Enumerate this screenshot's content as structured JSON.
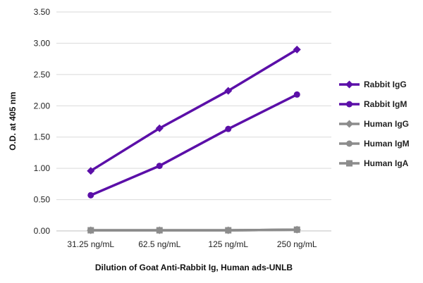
{
  "chart_data": {
    "type": "line",
    "categories": [
      "31.25 ng/mL",
      "62.5 ng/mL",
      "125 ng/mL",
      "250 ng/mL"
    ],
    "xlabel": "Dilution of Goat Anti-Rabbit Ig, Human ads-UNLB",
    "ylabel": "O.D. at 405 nm",
    "ylim": [
      0,
      3.5
    ],
    "yticks": [
      "0.00",
      "0.50",
      "1.00",
      "1.50",
      "2.00",
      "2.50",
      "3.00",
      "3.50"
    ],
    "grid": true,
    "legend_position": "right",
    "series": [
      {
        "name": "Rabbit IgG",
        "values": [
          0.96,
          1.64,
          2.24,
          2.9
        ],
        "color": "#5b0fa8",
        "marker": "diamond"
      },
      {
        "name": "Rabbit IgM",
        "values": [
          0.57,
          1.04,
          1.63,
          2.18
        ],
        "color": "#5b0fa8",
        "marker": "circle"
      },
      {
        "name": "Human IgG",
        "values": [
          0.01,
          0.01,
          0.01,
          0.02
        ],
        "color": "#8c8c8c",
        "marker": "diamond"
      },
      {
        "name": "Human IgM",
        "values": [
          0.01,
          0.01,
          0.01,
          0.02
        ],
        "color": "#8c8c8c",
        "marker": "circle"
      },
      {
        "name": "Human IgA",
        "values": [
          0.01,
          0.01,
          0.01,
          0.02
        ],
        "color": "#8c8c8c",
        "marker": "square"
      }
    ]
  }
}
